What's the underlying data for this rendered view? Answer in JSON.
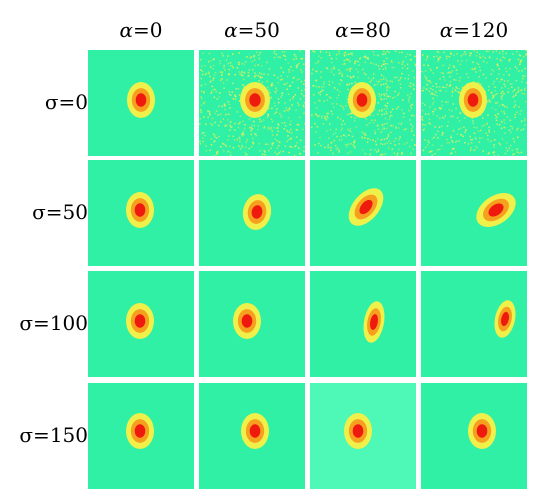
{
  "colors": {
    "background": "#2ff0a4",
    "background_alt": "#4ef8b6",
    "outer": "#f0f04a",
    "middle": "#f7a020",
    "core": "#ee1a0e",
    "noise": "#e0ee70"
  },
  "columns": [
    {
      "symbol": "α",
      "value": "=0"
    },
    {
      "symbol": "α",
      "value": "=50"
    },
    {
      "symbol": "α",
      "value": "=80"
    },
    {
      "symbol": "α",
      "value": "=120"
    }
  ],
  "rows": [
    {
      "label": "σ=0"
    },
    {
      "label": "σ=50"
    },
    {
      "label": "σ=100"
    },
    {
      "label": "σ=150"
    }
  ],
  "tiles": [
    [
      {
        "noise": false,
        "alt_bg": false,
        "shape": "round"
      },
      {
        "noise": true,
        "alt_bg": false,
        "shape": "round"
      },
      {
        "noise": true,
        "alt_bg": false,
        "shape": "round"
      },
      {
        "noise": true,
        "alt_bg": false,
        "shape": "round"
      }
    ],
    [
      {
        "noise": false,
        "alt_bg": false,
        "shape": "round"
      },
      {
        "noise": false,
        "alt_bg": false,
        "shape": "round"
      },
      {
        "noise": false,
        "alt_bg": false,
        "shape": "elongated-diagonal"
      },
      {
        "noise": false,
        "alt_bg": false,
        "shape": "elongated-diagonal"
      }
    ],
    [
      {
        "noise": false,
        "alt_bg": false,
        "shape": "round"
      },
      {
        "noise": false,
        "alt_bg": false,
        "shape": "round"
      },
      {
        "noise": false,
        "alt_bg": false,
        "shape": "elongated-vertical"
      },
      {
        "noise": false,
        "alt_bg": false,
        "shape": "elongated-vertical"
      }
    ],
    [
      {
        "noise": false,
        "alt_bg": false,
        "shape": "round"
      },
      {
        "noise": false,
        "alt_bg": false,
        "shape": "round"
      },
      {
        "noise": false,
        "alt_bg": true,
        "shape": "round"
      },
      {
        "noise": false,
        "alt_bg": false,
        "shape": "round"
      }
    ]
  ]
}
